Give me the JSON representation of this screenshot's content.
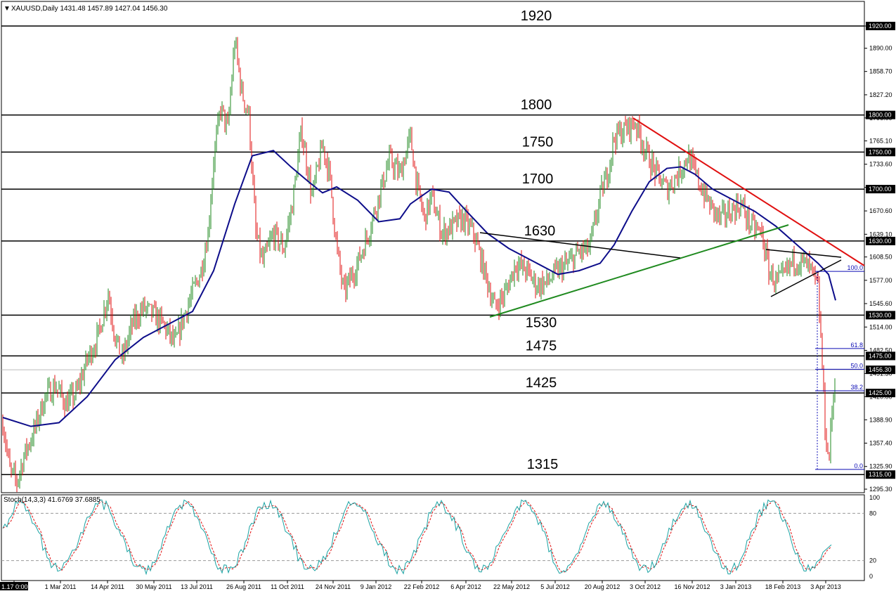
{
  "header": {
    "arrow_glyph": "▼",
    "title": "XAUUSD,Daily  1431.48 1457.89 1427.04 1456.30"
  },
  "stoch_header": "Stoch(14,3,3) 41.6769 37.6885",
  "chart_data": [
    {
      "type": "candlestick",
      "symbol": "XAUUSD",
      "timeframe": "Daily",
      "ohlc_last": {
        "open": 1431.48,
        "high": 1457.89,
        "low": 1427.04,
        "close": 1456.3
      },
      "y_ticks": [
        1920.0,
        1890.0,
        1858.7,
        1827.2,
        1796.0,
        1765.1,
        1733.6,
        1702.4,
        1670.6,
        1639.1,
        1608.5,
        1577.0,
        1545.6,
        1514.0,
        1482.5,
        1451.3,
        1420.0,
        1388.9,
        1357.4,
        1325.9,
        1295.3
      ],
      "ylim": [
        1283,
        1933
      ],
      "x_tick_labels": [
        "1.17 0:00",
        "1 Mar 2011",
        "14 Apr 2011",
        "30 May 2011",
        "13 Jul 2011",
        "26 Aug 2011",
        "11 Oct 2011",
        "24 Nov 2011",
        "9 Jan 2012",
        "22 Feb 2012",
        "6 Apr 2012",
        "22 May 2012",
        "5 Jul 2012",
        "20 Aug 2012",
        "3 Oct 2012",
        "16 Nov 2012",
        "3 Jan 2013",
        "18 Feb 2013",
        "3 Apr 2013"
      ],
      "horizontal_levels": [
        {
          "value": 1920,
          "label": "1920",
          "badge": "1920.00"
        },
        {
          "value": 1800,
          "label": "1800",
          "badge": "1800.00"
        },
        {
          "value": 1750,
          "label": "1750",
          "badge": "1750.00"
        },
        {
          "value": 1700,
          "label": "1700",
          "badge": "1700.00"
        },
        {
          "value": 1630,
          "label": "1630",
          "badge": "1630.00"
        },
        {
          "value": 1530,
          "label": "1530",
          "badge": "1530.00"
        },
        {
          "value": 1475,
          "label": "1475",
          "badge": "1475.00"
        },
        {
          "value": 1425,
          "label": "1425",
          "badge": "1425.00"
        },
        {
          "value": 1315,
          "label": "1315",
          "badge": "1315.00"
        }
      ],
      "current_price_badge": {
        "value": 1456.3,
        "label": "1456.30"
      },
      "fibonacci": [
        {
          "label": "100.0",
          "value": 1589
        },
        {
          "label": "61.8",
          "value": 1485
        },
        {
          "label": "50.0",
          "value": 1457
        },
        {
          "label": "38.2",
          "value": 1428
        },
        {
          "label": "0.0",
          "value": 1322
        }
      ],
      "trendlines": [
        {
          "name": "resistance",
          "color": "#e01010"
        },
        {
          "name": "support",
          "color": "#1f8a1f"
        },
        {
          "name": "triangle",
          "color": "#000000"
        }
      ],
      "moving_average_color": "#0d0d8a",
      "bull_color": "#1f8a1f",
      "bear_color": "#e01010",
      "price_path": [
        [
          0,
          1385
        ],
        [
          10,
          1320
        ],
        [
          20,
          1305
        ],
        [
          30,
          1340
        ],
        [
          45,
          1375
        ],
        [
          60,
          1420
        ],
        [
          75,
          1435
        ],
        [
          90,
          1410
        ],
        [
          105,
          1425
        ],
        [
          120,
          1470
        ],
        [
          135,
          1500
        ],
        [
          150,
          1560
        ],
        [
          160,
          1500
        ],
        [
          170,
          1470
        ],
        [
          185,
          1520
        ],
        [
          200,
          1540
        ],
        [
          215,
          1530
        ],
        [
          230,
          1515
        ],
        [
          245,
          1490
        ],
        [
          258,
          1530
        ],
        [
          270,
          1560
        ],
        [
          282,
          1590
        ],
        [
          292,
          1640
        ],
        [
          300,
          1740
        ],
        [
          310,
          1810
        ],
        [
          320,
          1780
        ],
        [
          330,
          1900
        ],
        [
          340,
          1830
        ],
        [
          350,
          1800
        ],
        [
          360,
          1640
        ],
        [
          370,
          1600
        ],
        [
          385,
          1640
        ],
        [
          400,
          1620
        ],
        [
          412,
          1680
        ],
        [
          425,
          1780
        ],
        [
          440,
          1690
        ],
        [
          455,
          1760
        ],
        [
          465,
          1720
        ],
        [
          475,
          1620
        ],
        [
          485,
          1560
        ],
        [
          495,
          1580
        ],
        [
          505,
          1600
        ],
        [
          520,
          1640
        ],
        [
          535,
          1690
        ],
        [
          550,
          1740
        ],
        [
          565,
          1720
        ],
        [
          580,
          1770
        ],
        [
          590,
          1700
        ],
        [
          600,
          1660
        ],
        [
          610,
          1690
        ],
        [
          625,
          1640
        ],
        [
          640,
          1650
        ],
        [
          655,
          1660
        ],
        [
          670,
          1640
        ],
        [
          685,
          1590
        ],
        [
          700,
          1540
        ],
        [
          715,
          1560
        ],
        [
          730,
          1600
        ],
        [
          745,
          1590
        ],
        [
          760,
          1570
        ],
        [
          775,
          1575
        ],
        [
          790,
          1590
        ],
        [
          805,
          1600
        ],
        [
          820,
          1615
        ],
        [
          835,
          1620
        ],
        [
          850,
          1690
        ],
        [
          860,
          1720
        ],
        [
          870,
          1770
        ],
        [
          885,
          1780
        ],
        [
          900,
          1790
        ],
        [
          915,
          1750
        ],
        [
          930,
          1720
        ],
        [
          945,
          1700
        ],
        [
          960,
          1720
        ],
        [
          975,
          1745
        ],
        [
          990,
          1710
        ],
        [
          1005,
          1680
        ],
        [
          1020,
          1660
        ],
        [
          1035,
          1670
        ],
        [
          1050,
          1680
        ],
        [
          1065,
          1650
        ],
        [
          1080,
          1640
        ],
        [
          1090,
          1590
        ],
        [
          1100,
          1575
        ],
        [
          1110,
          1580
        ],
        [
          1125,
          1605
        ],
        [
          1140,
          1600
        ],
        [
          1150,
          1590
        ],
        [
          1160,
          1565
        ],
        [
          1165,
          1480
        ],
        [
          1170,
          1380
        ],
        [
          1175,
          1330
        ],
        [
          1180,
          1400
        ],
        [
          1185,
          1456
        ]
      ],
      "moving_average": [
        [
          0,
          1392
        ],
        [
          40,
          1380
        ],
        [
          80,
          1385
        ],
        [
          120,
          1420
        ],
        [
          160,
          1470
        ],
        [
          200,
          1500
        ],
        [
          240,
          1520
        ],
        [
          270,
          1535
        ],
        [
          300,
          1590
        ],
        [
          330,
          1680
        ],
        [
          355,
          1745
        ],
        [
          385,
          1752
        ],
        [
          410,
          1730
        ],
        [
          435,
          1710
        ],
        [
          455,
          1695
        ],
        [
          475,
          1703
        ],
        [
          505,
          1685
        ],
        [
          535,
          1656
        ],
        [
          565,
          1660
        ],
        [
          580,
          1680
        ],
        [
          610,
          1700
        ],
        [
          635,
          1696
        ],
        [
          660,
          1670
        ],
        [
          690,
          1640
        ],
        [
          720,
          1620
        ],
        [
          760,
          1600
        ],
        [
          790,
          1585
        ],
        [
          820,
          1590
        ],
        [
          850,
          1600
        ],
        [
          870,
          1625
        ],
        [
          895,
          1670
        ],
        [
          920,
          1710
        ],
        [
          945,
          1728
        ],
        [
          965,
          1730
        ],
        [
          985,
          1720
        ],
        [
          1010,
          1700
        ],
        [
          1040,
          1685
        ],
        [
          1070,
          1670
        ],
        [
          1100,
          1650
        ],
        [
          1130,
          1625
        ],
        [
          1160,
          1600
        ],
        [
          1175,
          1585
        ],
        [
          1185,
          1550
        ]
      ]
    },
    {
      "type": "line",
      "name": "Stochastic oscillator",
      "params": "14,3,3",
      "main": 41.6769,
      "signal": 37.6885,
      "ylim": [
        0,
        100
      ],
      "y_ticks": [
        100,
        80,
        20,
        0
      ],
      "levels": [
        80,
        20
      ],
      "main_color": "#1aa3a3",
      "signal_color": "#e01010"
    }
  ]
}
